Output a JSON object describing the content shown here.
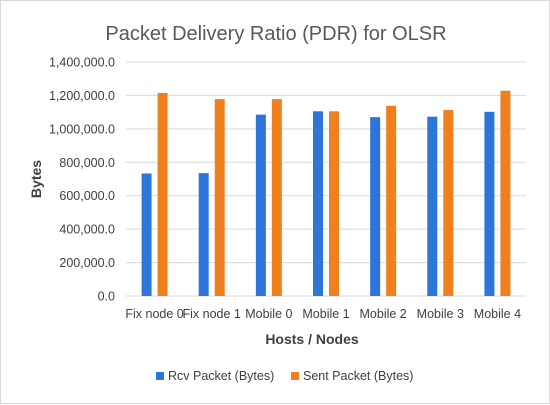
{
  "chart_data": {
    "type": "bar",
    "title": "Packet Delivery Ratio (PDR) for OLSR",
    "xlabel": "Hosts / Nodes",
    "ylabel": "Bytes",
    "categories": [
      "Fix node 0",
      "Fix node 1",
      "Mobile 0",
      "Mobile 1",
      "Mobile 2",
      "Mobile 3",
      "Mobile 4"
    ],
    "series": [
      {
        "name": "Rcv Packet (Bytes)",
        "color": "#2e75d9",
        "values": [
          733000,
          735000,
          1085000,
          1105000,
          1070000,
          1073000,
          1102000
        ]
      },
      {
        "name": "Sent Packet (Bytes)",
        "color": "#f07f1e",
        "values": [
          1215000,
          1178000,
          1178000,
          1105000,
          1138000,
          1113000,
          1228000
        ]
      }
    ],
    "ylim": [
      0,
      1400000
    ],
    "yticks": [
      0,
      200000,
      400000,
      600000,
      800000,
      1000000,
      1200000,
      1400000
    ],
    "ytick_labels": [
      "0.0",
      "200,000.0",
      "400,000.0",
      "600,000.0",
      "800,000.0",
      "1,000,000.0",
      "1,200,000.0",
      "1,400,000.0"
    ],
    "grid": true,
    "legend_position": "bottom"
  }
}
